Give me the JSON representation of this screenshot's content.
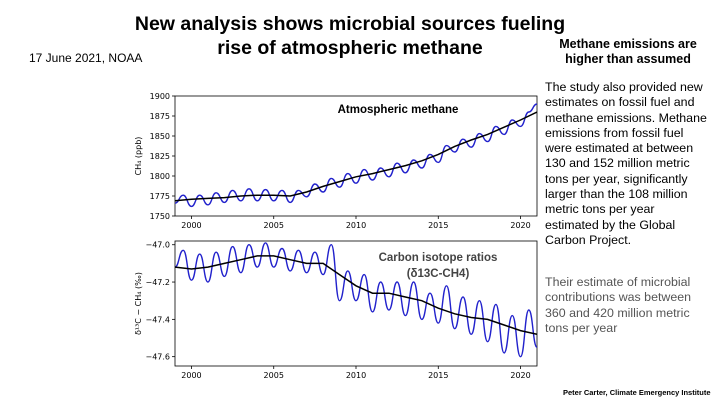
{
  "slide": {
    "title_lines": [
      "New analysis shows microbial sources fueling",
      "rise of atmospheric methane"
    ],
    "dateline": "17  June 2021, NOAA",
    "side_heading": [
      "Methane emissions are",
      "higher than assumed"
    ],
    "side_text_lines": [
      "The study also provided new",
      "estimates on fossil fuel and",
      "methane emissions. Methane",
      "emissions from fossil fuel",
      "were estimated at between",
      "130 and 152 million metric",
      "tons per year, significantly",
      "larger than the 108 million",
      "metric tons per year",
      "estimated by the Global",
      "Carbon Project."
    ],
    "side_text2_lines": [
      "Their estimate of microbial",
      "contributions was between",
      "360 and 420 million metric",
      "tons per year"
    ],
    "credit": "Peter Carter, Climate Emergency Institute"
  },
  "colors": {
    "series": "#2222cc",
    "trend": "#000000"
  },
  "chart_data": [
    {
      "type": "line",
      "annotation": "Atmospheric methane",
      "ylabel": "CH₄ (ppb)",
      "xlim": [
        1999,
        2021
      ],
      "ylim": [
        1750,
        1900
      ],
      "yticks": [
        1750,
        1775,
        1800,
        1825,
        1850,
        1875,
        1900
      ],
      "xticks": [
        2000,
        2005,
        2010,
        2015,
        2020
      ],
      "grid": false,
      "series": [
        {
          "style": "monthly",
          "x": [
            1999.0,
            1999.5,
            2000.0,
            2000.5,
            2001.0,
            2001.5,
            2002.0,
            2002.5,
            2003.0,
            2003.5,
            2004.0,
            2004.5,
            2005.0,
            2005.5,
            2006.0,
            2006.5,
            2007.0,
            2007.5,
            2008.0,
            2008.5,
            2009.0,
            2009.5,
            2010.0,
            2010.5,
            2011.0,
            2011.5,
            2012.0,
            2012.5,
            2013.0,
            2013.5,
            2014.0,
            2014.5,
            2015.0,
            2015.5,
            2016.0,
            2016.5,
            2017.0,
            2017.5,
            2018.0,
            2018.5,
            2019.0,
            2019.5,
            2020.0,
            2020.5,
            2021.0
          ],
          "y": [
            1766,
            1776,
            1762,
            1776,
            1764,
            1779,
            1767,
            1782,
            1769,
            1784,
            1769,
            1783,
            1769,
            1782,
            1767,
            1782,
            1774,
            1790,
            1780,
            1797,
            1786,
            1803,
            1791,
            1808,
            1795,
            1810,
            1799,
            1816,
            1804,
            1820,
            1810,
            1827,
            1817,
            1838,
            1830,
            1846,
            1836,
            1853,
            1843,
            1862,
            1852,
            1870,
            1862,
            1880,
            1890
          ]
        },
        {
          "style": "trend",
          "x": [
            1999,
            2000,
            2001,
            2002,
            2003,
            2004,
            2005,
            2006,
            2007,
            2008,
            2009,
            2010,
            2011,
            2012,
            2013,
            2014,
            2015,
            2016,
            2017,
            2018,
            2019,
            2020,
            2021
          ],
          "y": [
            1769,
            1771,
            1772,
            1773,
            1775,
            1776,
            1776,
            1775,
            1780,
            1787,
            1793,
            1799,
            1803,
            1808,
            1813,
            1819,
            1827,
            1837,
            1845,
            1852,
            1861,
            1870,
            1880
          ]
        }
      ]
    },
    {
      "type": "line",
      "annotation": [
        "Carbon isotope ratios",
        "(δ13C-CH4)"
      ],
      "ylabel": "δ¹³C − CH₄ (‰)",
      "xlim": [
        1999,
        2021
      ],
      "ylim": [
        -47.65,
        -46.98
      ],
      "yticks": [
        -47.0,
        -47.2,
        -47.4,
        -47.6
      ],
      "xticks": [
        2000,
        2005,
        2010,
        2015,
        2020
      ],
      "grid": false,
      "series": [
        {
          "style": "monthly",
          "x": [
            1999.0,
            1999.5,
            2000.0,
            2000.5,
            2001.0,
            2001.5,
            2002.0,
            2002.5,
            2003.0,
            2003.5,
            2004.0,
            2004.5,
            2005.0,
            2005.5,
            2006.0,
            2006.5,
            2007.0,
            2007.5,
            2008.0,
            2008.5,
            2009.0,
            2009.5,
            2010.0,
            2010.5,
            2011.0,
            2011.5,
            2012.0,
            2012.5,
            2013.0,
            2013.5,
            2014.0,
            2014.5,
            2015.0,
            2015.5,
            2016.0,
            2016.5,
            2017.0,
            2017.5,
            2018.0,
            2018.5,
            2019.0,
            2019.5,
            2020.0,
            2020.5,
            2021.0
          ],
          "y": [
            -47.12,
            -47.03,
            -47.19,
            -47.05,
            -47.2,
            -47.04,
            -47.17,
            -47.01,
            -47.15,
            -47.0,
            -47.12,
            -46.99,
            -47.12,
            -47.02,
            -47.14,
            -47.03,
            -47.15,
            -47.04,
            -47.16,
            -47.0,
            -47.3,
            -47.14,
            -47.3,
            -47.16,
            -47.36,
            -47.2,
            -47.35,
            -47.2,
            -47.38,
            -47.2,
            -47.4,
            -47.26,
            -47.42,
            -47.22,
            -47.45,
            -47.28,
            -47.48,
            -47.3,
            -47.52,
            -47.32,
            -47.58,
            -47.38,
            -47.6,
            -47.35,
            -47.55
          ]
        },
        {
          "style": "trend",
          "x": [
            1999,
            2000,
            2001,
            2002,
            2003,
            2004,
            2005,
            2006,
            2007,
            2008,
            2009,
            2010,
            2011,
            2012,
            2013,
            2014,
            2015,
            2016,
            2017,
            2018,
            2019,
            2020,
            2021
          ],
          "y": [
            -47.12,
            -47.13,
            -47.12,
            -47.1,
            -47.08,
            -47.06,
            -47.06,
            -47.08,
            -47.1,
            -47.1,
            -47.16,
            -47.22,
            -47.26,
            -47.26,
            -47.28,
            -47.3,
            -47.34,
            -47.37,
            -47.39,
            -47.4,
            -47.43,
            -47.46,
            -47.48
          ]
        }
      ]
    }
  ]
}
